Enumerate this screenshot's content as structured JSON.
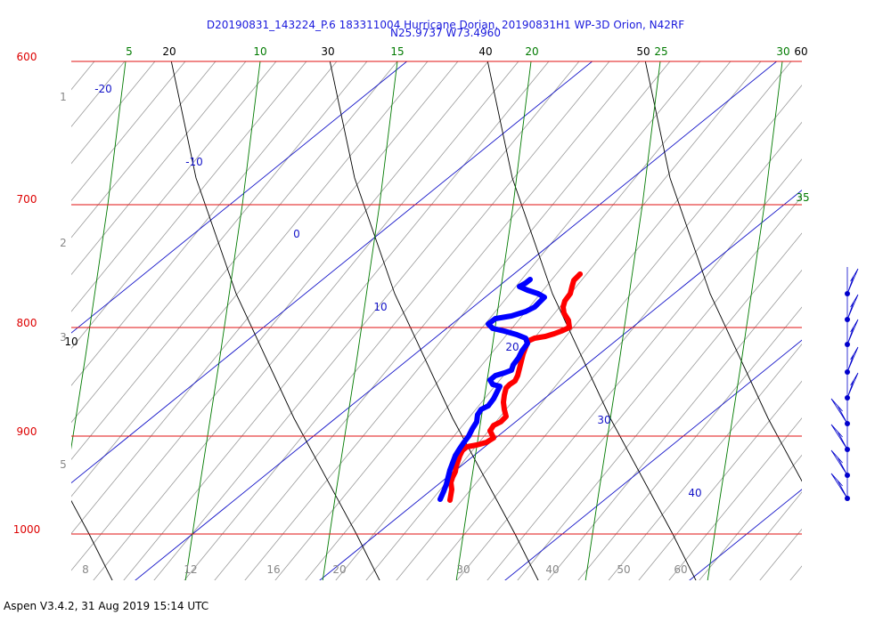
{
  "chart_data": {
    "type": "skew-t",
    "title": "D20190831_143224_P.6 183311004 Hurricane Dorian, 20190831H1 WP-3D Orion, N42RF",
    "subtitle": "N25.9737 W73.4960",
    "footer": "Aspen V3.4.2, 31 Aug 2019  15:14 UTC",
    "pressure_levels": [
      "600",
      "700",
      "800",
      "900",
      "1000"
    ],
    "isotherm_labels": [
      "-20",
      "-10",
      "0",
      "10",
      "20",
      "30",
      "40"
    ],
    "mixing_ratio_labels": [
      "8",
      "12",
      "16",
      "20",
      "30",
      "40",
      "50",
      "60"
    ],
    "dry_adiabat_labels": [
      "10",
      "20",
      "30",
      "40",
      "50",
      "60"
    ],
    "moist_adiabat_labels": [
      "5",
      "10",
      "15",
      "20",
      "25",
      "30",
      "35"
    ],
    "height_km_labels": [
      "1",
      "2",
      "3",
      "5"
    ],
    "series": [
      {
        "name": "",
        "color": "#ff0000",
        "points": [
          [
            651,
            308
          ],
          [
            644,
            315
          ],
          [
            642,
            322
          ],
          [
            640,
            330
          ],
          [
            634,
            338
          ],
          [
            632,
            345
          ],
          [
            633,
            352
          ],
          [
            638,
            360
          ],
          [
            639,
            368
          ],
          [
            630,
            372
          ],
          [
            622,
            375
          ],
          [
            612,
            378
          ],
          [
            600,
            380
          ],
          [
            593,
            383
          ],
          [
            590,
            390
          ],
          [
            587,
            398
          ],
          [
            585,
            406
          ],
          [
            583,
            414
          ],
          [
            581,
            422
          ],
          [
            578,
            428
          ],
          [
            572,
            432
          ],
          [
            568,
            436
          ],
          [
            566,
            444
          ],
          [
            565,
            452
          ],
          [
            566,
            460
          ],
          [
            568,
            468
          ],
          [
            562,
            474
          ],
          [
            554,
            478
          ],
          [
            550,
            484
          ],
          [
            554,
            492
          ],
          [
            546,
            497
          ],
          [
            535,
            500
          ],
          [
            524,
            502
          ],
          [
            519,
            506
          ],
          [
            516,
            512
          ],
          [
            514,
            518
          ],
          [
            512,
            524
          ],
          [
            511,
            530
          ],
          [
            508,
            536
          ],
          [
            506,
            542
          ],
          [
            507,
            550
          ],
          [
            506,
            556
          ],
          [
            505,
            562
          ]
        ]
      },
      {
        "name": "",
        "color": "#0000ff",
        "points": [
          [
            595,
            314
          ],
          [
            590,
            318
          ],
          [
            583,
            322
          ],
          [
            592,
            326
          ],
          [
            604,
            330
          ],
          [
            611,
            334
          ],
          [
            605,
            340
          ],
          [
            600,
            345
          ],
          [
            590,
            350
          ],
          [
            574,
            355
          ],
          [
            556,
            358
          ],
          [
            548,
            364
          ],
          [
            553,
            369
          ],
          [
            566,
            372
          ],
          [
            580,
            376
          ],
          [
            590,
            380
          ],
          [
            592,
            386
          ],
          [
            586,
            394
          ],
          [
            582,
            402
          ],
          [
            576,
            410
          ],
          [
            574,
            416
          ],
          [
            566,
            419
          ],
          [
            556,
            422
          ],
          [
            550,
            427
          ],
          [
            553,
            432
          ],
          [
            561,
            434
          ],
          [
            558,
            440
          ],
          [
            554,
            448
          ],
          [
            548,
            456
          ],
          [
            540,
            460
          ],
          [
            536,
            466
          ],
          [
            535,
            474
          ],
          [
            530,
            482
          ],
          [
            526,
            490
          ],
          [
            520,
            498
          ],
          [
            516,
            504
          ],
          [
            511,
            512
          ],
          [
            508,
            520
          ],
          [
            505,
            528
          ],
          [
            503,
            536
          ],
          [
            501,
            544
          ],
          [
            498,
            552
          ],
          [
            494,
            561
          ]
        ]
      }
    ],
    "wind_barb_heights": [
      330,
      359,
      387,
      418,
      447,
      476,
      505,
      534,
      560
    ]
  }
}
